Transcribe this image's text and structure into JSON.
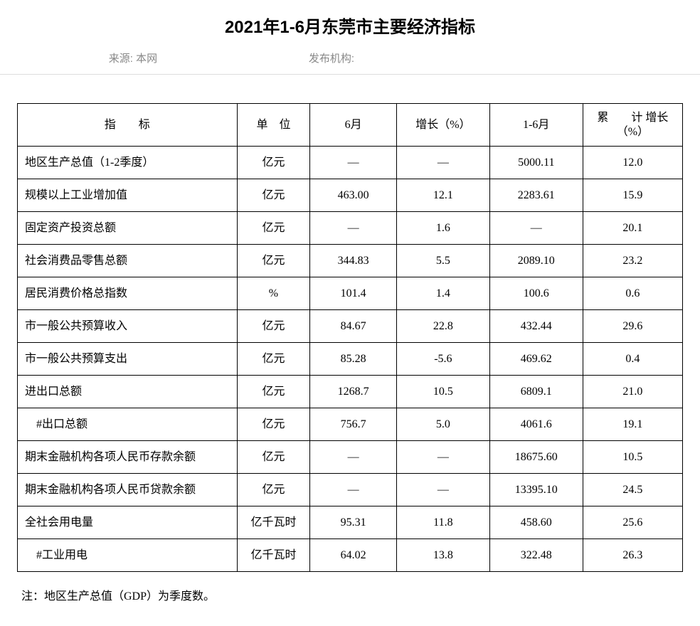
{
  "title": "2021年1-6月东莞市主要经济指标",
  "meta": {
    "source_label": "来源:",
    "source_value": "本网",
    "publisher_label": "发布机构:",
    "publisher_value": ""
  },
  "table": {
    "headers": {
      "indicator": "指　　标",
      "unit": "单　位",
      "month6": "6月",
      "growth": "增长（%）",
      "ytd": "1-6月",
      "cum_growth": "累　　计\n增长（%）"
    },
    "rows": [
      {
        "indicator": "地区生产总值（1-2季度）",
        "unit": "亿元",
        "m6": "—",
        "growth": "—",
        "ytd": "5000.11",
        "cum": "12.0"
      },
      {
        "indicator": "规模以上工业增加值",
        "unit": "亿元",
        "m6": "463.00",
        "growth": "12.1",
        "ytd": "2283.61",
        "cum": "15.9"
      },
      {
        "indicator": "固定资产投资总额",
        "unit": "亿元",
        "m6": "—",
        "growth": "1.6",
        "ytd": "—",
        "cum": "20.1"
      },
      {
        "indicator": "社会消费品零售总额",
        "unit": "亿元",
        "m6": "344.83",
        "growth": "5.5",
        "ytd": "2089.10",
        "cum": "23.2"
      },
      {
        "indicator": "居民消费价格总指数",
        "unit": "%",
        "m6": "101.4",
        "growth": "1.4",
        "ytd": "100.6",
        "cum": "0.6"
      },
      {
        "indicator": "市一般公共预算收入",
        "unit": "亿元",
        "m6": "84.67",
        "growth": "22.8",
        "ytd": "432.44",
        "cum": "29.6"
      },
      {
        "indicator": "市一般公共预算支出",
        "unit": "亿元",
        "m6": "85.28",
        "growth": "-5.6",
        "ytd": "469.62",
        "cum": "0.4"
      },
      {
        "indicator": "进出口总额",
        "unit": "亿元",
        "m6": "1268.7",
        "growth": "10.5",
        "ytd": "6809.1",
        "cum": "21.0"
      },
      {
        "indicator": "　#出口总额",
        "unit": "亿元",
        "m6": "756.7",
        "growth": "5.0",
        "ytd": "4061.6",
        "cum": "19.1"
      },
      {
        "indicator": "期末金融机构各项人民币存款余额",
        "unit": "亿元",
        "m6": "—",
        "growth": "—",
        "ytd": "18675.60",
        "cum": "10.5"
      },
      {
        "indicator": "期末金融机构各项人民币贷款余额",
        "unit": "亿元",
        "m6": "—",
        "growth": "—",
        "ytd": "13395.10",
        "cum": "24.5"
      },
      {
        "indicator": "全社会用电量",
        "unit": "亿千瓦时",
        "m6": "95.31",
        "growth": "11.8",
        "ytd": "458.60",
        "cum": "25.6"
      },
      {
        "indicator": "　#工业用电",
        "unit": "亿千瓦时",
        "m6": "64.02",
        "growth": "13.8",
        "ytd": "322.48",
        "cum": "26.3"
      }
    ]
  },
  "footnote": "注：地区生产总值（GDP）为季度数。",
  "colors": {
    "text": "#000000",
    "meta_text": "#888888",
    "border": "#000000",
    "meta_border": "#dddddd",
    "background": "#ffffff"
  }
}
